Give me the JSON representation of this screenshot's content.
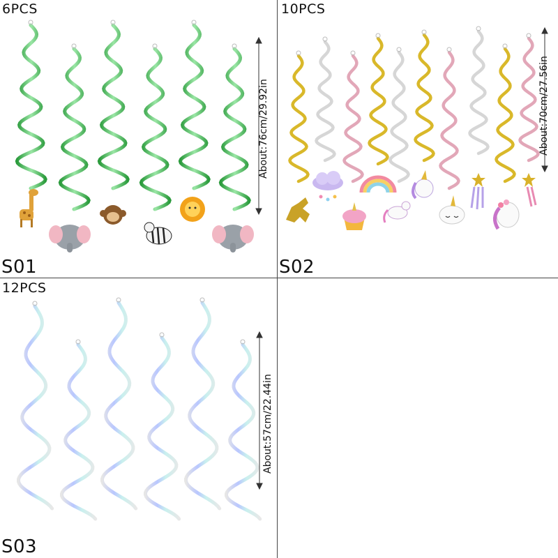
{
  "panels": [
    {
      "code": "S01",
      "count_label": "6PCS",
      "measurement": "About:76cm/29.92in",
      "swirl_color": "#36b24a",
      "swirl_highlight": "#bfeec4",
      "hangers": [
        "giraffe",
        "elephant",
        "monkey",
        "zebra",
        "lion",
        "elephant"
      ]
    },
    {
      "code": "S02",
      "count_label": "10PCS",
      "measurement": "About:70cm/27.56in",
      "swirl_colors": [
        "#d9b82a",
        "#d6d6d6",
        "#e2a7b8",
        "#d9b82a",
        "#d6d6d6",
        "#d9b82a",
        "#e2a7b8",
        "#d6d6d6",
        "#d9b82a",
        "#e2a7b8"
      ],
      "hangers": [
        "gold-unicorn",
        "rain-cloud",
        "cupcake",
        "rainbow",
        "unicorn-prancing",
        "unicorn-head",
        "unicorn-face",
        "unicorn-flowers",
        "shooting-star",
        "shooting-star"
      ]
    },
    {
      "code": "S03",
      "count_label": "12PCS",
      "measurement": "About:57cm/22.44in",
      "swirl_color": "#d4dbe6",
      "swirl_highlight": "#b7c7ff"
    }
  ]
}
